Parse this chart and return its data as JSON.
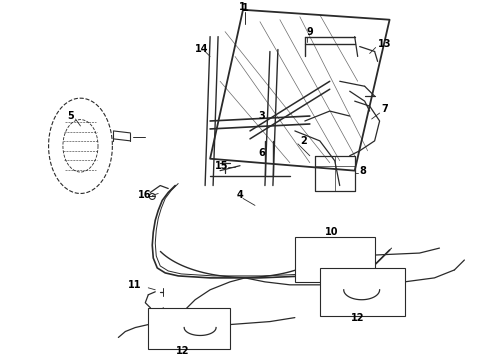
{
  "bg_color": "#ffffff",
  "line_color": "#2a2a2a",
  "label_color": "#000000",
  "figsize": [
    4.9,
    3.6
  ],
  "dpi": 100
}
